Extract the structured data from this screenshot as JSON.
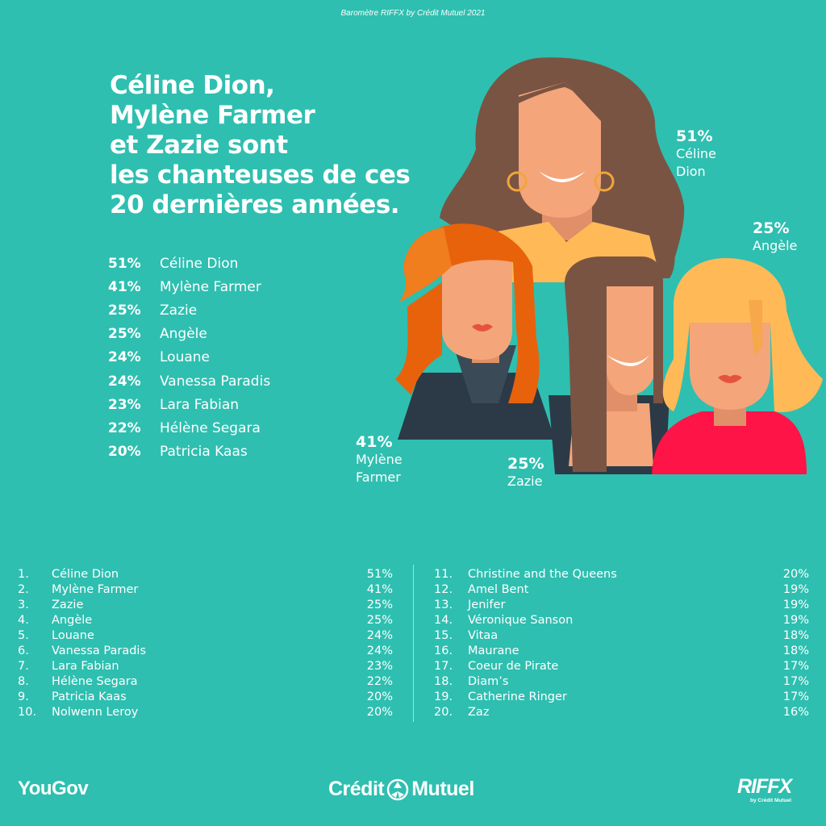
{
  "caption": "Baromètre RIFFX by Crédit Mutuel 2021",
  "title_lines": [
    "Céline Dion,",
    "Mylène Farmer",
    "et Zazie sont",
    "les chanteuses de ces",
    "20 dernières années."
  ],
  "top_list": [
    {
      "pct": "51%",
      "name": "Céline Dion"
    },
    {
      "pct": "41%",
      "name": "Mylène Farmer"
    },
    {
      "pct": "25%",
      "name": "Zazie"
    },
    {
      "pct": "25%",
      "name": "Angèle"
    },
    {
      "pct": "24%",
      "name": "Louane"
    },
    {
      "pct": "24%",
      "name": "Vanessa Paradis"
    },
    {
      "pct": "23%",
      "name": "Lara Fabian"
    },
    {
      "pct": "22%",
      "name": "Hélène Segara"
    },
    {
      "pct": "20%",
      "name": "Patricia Kaas"
    }
  ],
  "callouts": {
    "celine": {
      "pct": "51%",
      "line1": "Céline",
      "line2": "Dion"
    },
    "angele": {
      "pct": "25%",
      "line1": "Angèle"
    },
    "mylene": {
      "pct": "41%",
      "line1": "Mylène",
      "line2": "Farmer"
    },
    "zazie": {
      "pct": "25%",
      "line1": "Zazie"
    }
  },
  "ranking_left": [
    {
      "n": "1.",
      "name": "Céline Dion",
      "v": "51%"
    },
    {
      "n": "2.",
      "name": "Mylène Farmer",
      "v": "41%"
    },
    {
      "n": "3.",
      "name": "Zazie",
      "v": "25%"
    },
    {
      "n": "4.",
      "name": "Angèle",
      "v": "25%"
    },
    {
      "n": "5.",
      "name": "Louane",
      "v": "24%"
    },
    {
      "n": "6.",
      "name": "Vanessa Paradis",
      "v": "24%"
    },
    {
      "n": "7.",
      "name": "Lara Fabian",
      "v": "23%"
    },
    {
      "n": "8.",
      "name": "Hélène Segara",
      "v": "22%"
    },
    {
      "n": "9.",
      "name": "Patricia Kaas",
      "v": "20%"
    },
    {
      "n": "10.",
      "name": "Nolwenn Leroy",
      "v": "20%"
    }
  ],
  "ranking_right": [
    {
      "n": "11.",
      "name": "Christine and the Queens",
      "v": "20%"
    },
    {
      "n": "12.",
      "name": "Amel Bent",
      "v": "19%"
    },
    {
      "n": "13.",
      "name": "Jenifer",
      "v": "19%"
    },
    {
      "n": "14.",
      "name": "Véronique Sanson",
      "v": "19%"
    },
    {
      "n": "15.",
      "name": "Vitaa",
      "v": "18%"
    },
    {
      "n": "16.",
      "name": "Maurane",
      "v": "18%"
    },
    {
      "n": "17.",
      "name": "Coeur de Pirate",
      "v": "17%"
    },
    {
      "n": "18.",
      "name": "Diam’s",
      "v": "17%"
    },
    {
      "n": "19.",
      "name": "Catherine Ringer",
      "v": "17%"
    },
    {
      "n": "20.",
      "name": "Zaz",
      "v": "16%"
    }
  ],
  "logos": {
    "yougov": "YouGov",
    "credit_left": "Crédit",
    "credit_right": "Mutuel",
    "riffx": "RIFFX",
    "riffx_sub": "by Crédit Mutuel"
  },
  "colors": {
    "background": "#2ebfb0",
    "text": "#ffffff",
    "celine_hair": "#7a5443",
    "mylene_hair": "#e8620c",
    "angele_hair": "#ffba57",
    "angele_top": "#ff1447",
    "skin": "#f4a57a",
    "riffx_accent": "#f7941d"
  }
}
